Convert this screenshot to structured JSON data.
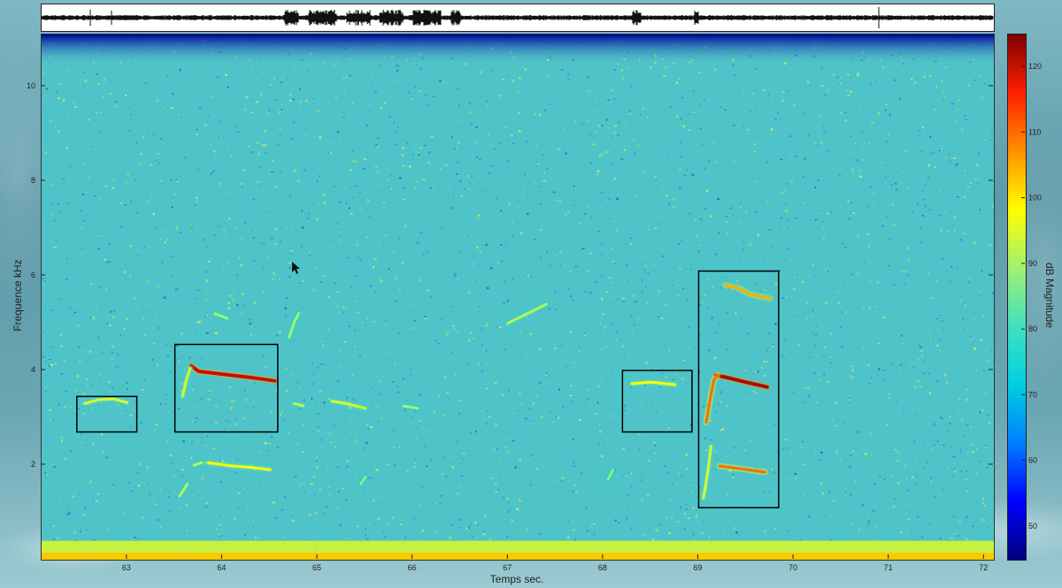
{
  "chart_data": {
    "type": "heatmap",
    "title": "",
    "xlabel": "Temps sec.",
    "ylabel": "Frequence kHz",
    "colorbar_label": "dB Magnitude",
    "x_range": [
      62.1,
      72.1
    ],
    "y_range": [
      0,
      11.1
    ],
    "x_ticks": [
      63,
      64,
      65,
      66,
      67,
      68,
      69,
      70,
      71,
      72
    ],
    "y_ticks": [
      2,
      4,
      6,
      8,
      10
    ],
    "colorbar_range": [
      45,
      125
    ],
    "colorbar_ticks": [
      50,
      60,
      70,
      80,
      90,
      100,
      110,
      120
    ],
    "colormap": [
      "#00007f",
      "#0000ff",
      "#0080ff",
      "#00d0e0",
      "#40e0c0",
      "#a0f070",
      "#ffff00",
      "#ff9000",
      "#ff2000",
      "#800000"
    ],
    "background_color": "#4fc4c8",
    "waveform_present": true,
    "annotation_boxes": [
      {
        "x0": 62.47,
        "x1": 63.1,
        "y0": 2.7,
        "y1": 3.45
      },
      {
        "x0": 63.5,
        "x1": 64.58,
        "y0": 2.7,
        "y1": 4.55
      },
      {
        "x0": 68.2,
        "x1": 68.93,
        "y0": 2.7,
        "y1": 4.0
      },
      {
        "x0": 69.0,
        "x1": 69.84,
        "y0": 1.1,
        "y1": 6.1
      }
    ],
    "whistle_traces": [
      {
        "points": [
          [
            62.55,
            3.3
          ],
          [
            62.7,
            3.38
          ],
          [
            62.85,
            3.4
          ],
          [
            63.0,
            3.32
          ]
        ],
        "level": 95
      },
      {
        "points": [
          [
            63.67,
            4.1
          ],
          [
            63.75,
            3.98
          ],
          [
            64.0,
            3.92
          ],
          [
            64.3,
            3.85
          ],
          [
            64.55,
            3.78
          ]
        ],
        "level": 120
      },
      {
        "points": [
          [
            63.58,
            3.45
          ],
          [
            63.62,
            3.8
          ],
          [
            63.66,
            4.05
          ]
        ],
        "level": 95
      },
      {
        "points": [
          [
            64.75,
            3.3
          ],
          [
            64.85,
            3.25
          ]
        ],
        "level": 92
      },
      {
        "points": [
          [
            65.15,
            3.35
          ],
          [
            65.3,
            3.3
          ],
          [
            65.5,
            3.2
          ]
        ],
        "level": 95
      },
      {
        "points": [
          [
            65.9,
            3.25
          ],
          [
            66.05,
            3.2
          ]
        ],
        "level": 90
      },
      {
        "points": [
          [
            63.85,
            2.05
          ],
          [
            64.1,
            1.98
          ],
          [
            64.3,
            1.95
          ],
          [
            64.5,
            1.9
          ]
        ],
        "level": 98
      },
      {
        "points": [
          [
            63.7,
            2.0
          ],
          [
            63.78,
            2.05
          ]
        ],
        "level": 92
      },
      {
        "points": [
          [
            63.55,
            1.35
          ],
          [
            63.6,
            1.5
          ],
          [
            63.63,
            1.6
          ]
        ],
        "level": 92
      },
      {
        "points": [
          [
            64.7,
            4.7
          ],
          [
            64.75,
            5.0
          ],
          [
            64.8,
            5.2
          ]
        ],
        "level": 90
      },
      {
        "points": [
          [
            63.92,
            5.2
          ],
          [
            64.05,
            5.1
          ]
        ],
        "level": 90
      },
      {
        "points": [
          [
            67.0,
            5.0
          ],
          [
            67.25,
            5.25
          ],
          [
            67.4,
            5.4
          ]
        ],
        "level": 92
      },
      {
        "points": [
          [
            68.3,
            3.72
          ],
          [
            68.5,
            3.75
          ],
          [
            68.75,
            3.7
          ]
        ],
        "level": 98
      },
      {
        "points": [
          [
            69.28,
            5.8
          ],
          [
            69.4,
            5.75
          ],
          [
            69.55,
            5.6
          ],
          [
            69.75,
            5.52
          ]
        ],
        "level": 105
      },
      {
        "points": [
          [
            69.18,
            3.9
          ],
          [
            69.3,
            3.85
          ],
          [
            69.5,
            3.75
          ],
          [
            69.72,
            3.65
          ]
        ],
        "level": 122
      },
      {
        "points": [
          [
            69.08,
            2.9
          ],
          [
            69.12,
            3.4
          ],
          [
            69.16,
            3.8
          ],
          [
            69.2,
            3.9
          ]
        ],
        "level": 110
      },
      {
        "points": [
          [
            69.05,
            1.3
          ],
          [
            69.1,
            1.9
          ],
          [
            69.13,
            2.4
          ]
        ],
        "level": 95
      },
      {
        "points": [
          [
            69.22,
            1.98
          ],
          [
            69.45,
            1.92
          ],
          [
            69.7,
            1.85
          ]
        ],
        "level": 110
      },
      {
        "points": [
          [
            68.05,
            1.7
          ],
          [
            68.1,
            1.9
          ]
        ],
        "level": 88
      },
      {
        "points": [
          [
            65.45,
            1.6
          ],
          [
            65.5,
            1.75
          ]
        ],
        "level": 88
      }
    ],
    "low_frequency_band": {
      "y0": 0,
      "y1": 0.4,
      "level": 95
    },
    "top_band": {
      "y0": 10.8,
      "y1": 11.1,
      "level": 55
    }
  }
}
